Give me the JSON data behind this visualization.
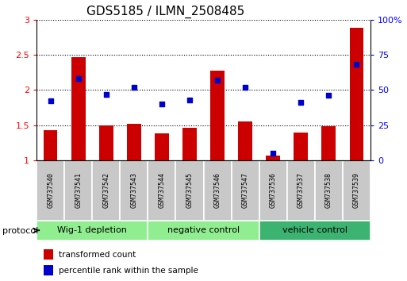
{
  "title": "GDS5185 / ILMN_2508485",
  "samples": [
    "GSM737540",
    "GSM737541",
    "GSM737542",
    "GSM737543",
    "GSM737544",
    "GSM737545",
    "GSM737546",
    "GSM737547",
    "GSM737536",
    "GSM737537",
    "GSM737538",
    "GSM737539"
  ],
  "bar_values": [
    1.43,
    2.47,
    1.5,
    1.52,
    1.38,
    1.46,
    2.27,
    1.55,
    1.06,
    1.39,
    1.48,
    2.88
  ],
  "dot_values": [
    42,
    58,
    47,
    52,
    40,
    43,
    57,
    52,
    5,
    41,
    46,
    68
  ],
  "ylim_left": [
    1.0,
    3.0
  ],
  "ylim_right": [
    0,
    100
  ],
  "bar_color": "#CC0000",
  "dot_color": "#0000CC",
  "bar_width": 0.5,
  "groups": [
    {
      "label": "Wig-1 depletion",
      "start": 0,
      "end": 3
    },
    {
      "label": "negative control",
      "start": 4,
      "end": 7
    },
    {
      "label": "vehicle control",
      "start": 8,
      "end": 11
    }
  ],
  "group_colors": [
    "#90EE90",
    "#90EE90",
    "#3CB371"
  ],
  "xlabel": "protocol",
  "yticks_left": [
    1.0,
    1.5,
    2.0,
    2.5,
    3.0
  ],
  "yticks_right": [
    0,
    25,
    50,
    75,
    100
  ],
  "ytick_labels_left": [
    "1",
    "1.5",
    "2",
    "2.5",
    "3"
  ],
  "ytick_labels_right": [
    "0",
    "25",
    "50",
    "75",
    "100%"
  ],
  "sample_box_color": "#C8C8C8",
  "background_color": "#FFFFFF",
  "legend_red_label": "transformed count",
  "legend_blue_label": "percentile rank within the sample",
  "title_fontsize": 11,
  "axis_fontsize": 8,
  "sample_fontsize": 6,
  "group_fontsize": 8,
  "legend_fontsize": 7.5
}
